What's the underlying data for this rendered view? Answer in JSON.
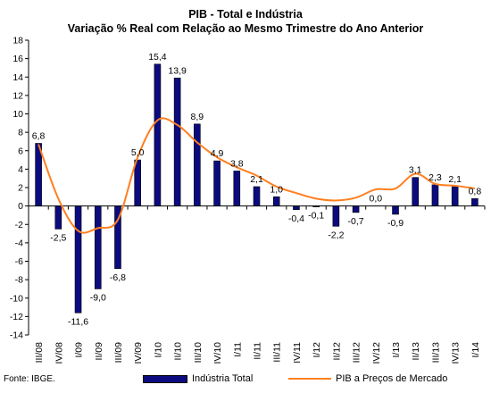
{
  "chart_data": {
    "type": "bar",
    "title": "PIB - Total e Indústria",
    "subtitle": "Variação % Real com Relação ao Mesmo Trimestre do Ano Anterior",
    "categories": [
      "III/08",
      "IV/08",
      "I/09",
      "II/09",
      "III/09",
      "IV/09",
      "I/10",
      "II/10",
      "III/10",
      "IV/10",
      "I/11",
      "II/11",
      "III/11",
      "IV/11",
      "I/12",
      "II/12",
      "III/12",
      "IV/12",
      "I/13",
      "II/13",
      "III/13",
      "IV/13",
      "I/14"
    ],
    "series": [
      {
        "name": "Indústria Total",
        "type": "bar",
        "color": "#0b0b7f",
        "values": [
          6.8,
          -2.5,
          -11.6,
          -9.0,
          -6.8,
          5.0,
          15.4,
          13.9,
          8.9,
          4.9,
          3.8,
          2.1,
          1.0,
          -0.4,
          -0.1,
          -2.2,
          -0.7,
          0.0,
          -0.9,
          3.1,
          2.3,
          2.1,
          0.8
        ],
        "labels": [
          "6,8",
          "-2,5",
          "-11,6",
          "-9,0",
          "-6,8",
          "5,0",
          "15,4",
          "13,9",
          "8,9",
          "4,9",
          "3,8",
          "2,1",
          "1,0",
          "-0,4",
          "-0,1",
          "-2,2",
          "-0,7",
          "0,0",
          "-0,9",
          "3,1",
          "2,3",
          "2,1",
          "0,8"
        ]
      },
      {
        "name": "PIB a Preços de Mercado",
        "type": "line",
        "color": "#ff7f1f",
        "values": [
          6.7,
          0.8,
          -2.7,
          -2.4,
          -1.5,
          5.3,
          9.3,
          8.8,
          6.9,
          5.3,
          4.2,
          3.3,
          2.1,
          1.4,
          0.8,
          0.6,
          0.9,
          1.8,
          1.9,
          3.5,
          2.4,
          2.2,
          1.9
        ]
      }
    ],
    "ylim": [
      -14,
      18
    ],
    "yticks": [
      18,
      16,
      14,
      12,
      10,
      8,
      6,
      4,
      2,
      0,
      -2,
      -4,
      -6,
      -8,
      -10,
      -12,
      -14
    ],
    "xlabel": "",
    "ylabel": "",
    "grid": false,
    "legend": "bottom"
  },
  "source": "Fonte: IBGE."
}
